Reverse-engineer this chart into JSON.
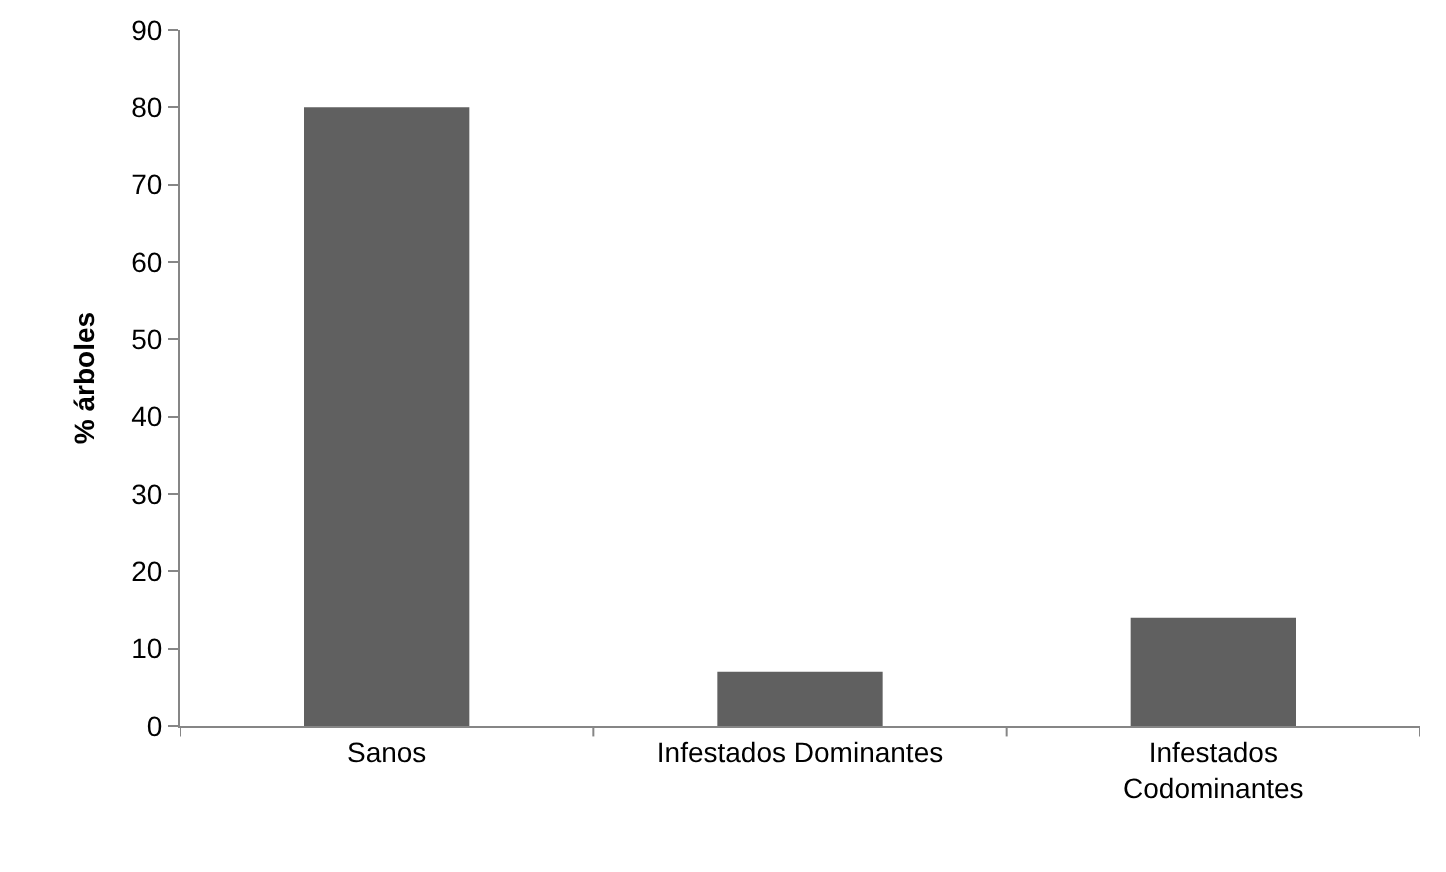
{
  "chart_data": {
    "type": "bar",
    "ylabel": "% árboles",
    "categories": [
      "Sanos",
      "Infestados Dominantes",
      "Infestados Codominantes"
    ],
    "values": [
      80,
      7,
      14
    ],
    "color": "#606060",
    "ylim": [
      0,
      90
    ],
    "yticks": [
      0,
      10,
      20,
      30,
      40,
      50,
      60,
      70,
      80,
      90
    ],
    "grid": false
  }
}
